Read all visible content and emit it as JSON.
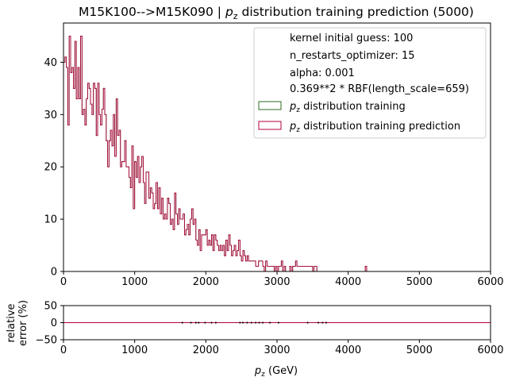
{
  "chart_data": [
    {
      "type": "histogram",
      "title": "M15K100-->M15K090 | p_z distribution training prediction (5000)",
      "title_parts": {
        "prefix": "M15K100-->M15K090 | ",
        "var": "p",
        "sub": "z",
        "suffix": " distribution training prediction (5000)"
      },
      "xlabel": "",
      "ylabel": "",
      "xlim": [
        0,
        6000
      ],
      "ylim": [
        0,
        47.5
      ],
      "x_ticks": [
        "0",
        "1000",
        "2000",
        "3000",
        "4000",
        "5000",
        "6000"
      ],
      "y_ticks": [
        "0",
        "10",
        "20",
        "30",
        "40"
      ],
      "x_tick_values": [
        0,
        1000,
        2000,
        3000,
        4000,
        5000,
        6000
      ],
      "y_tick_values": [
        0,
        10,
        20,
        30,
        40
      ],
      "legend_position": "top-right",
      "legend_text": [
        "kernel initial guess: 100",
        "n_restarts_optimizer: 15",
        "alpha: 0.001",
        "0.369**2 * RBF(length_scale=659)"
      ],
      "series": [
        {
          "name": "p_z distribution training",
          "label_var": "p",
          "label_sub": "z",
          "label_rest": " distribution training",
          "color": "#2e6b1f"
        },
        {
          "name": "p_z distribution training prediction",
          "label_var": "p",
          "label_sub": "z",
          "label_rest": " distribution training prediction",
          "color": "#b2003c"
        }
      ],
      "bin_start": 0,
      "bin_width": 20,
      "counts": [
        40,
        41,
        39,
        28,
        45,
        38,
        39,
        35,
        44,
        33,
        39,
        33,
        45,
        30,
        31,
        28,
        33,
        36,
        35,
        32,
        30,
        36,
        35,
        26,
        36,
        30,
        28,
        31,
        35,
        30,
        25,
        20,
        25,
        27,
        24,
        30,
        22,
        33,
        26,
        27,
        20,
        21,
        21,
        25,
        20,
        20,
        18,
        16,
        24,
        12,
        21,
        18,
        22,
        17,
        20,
        22,
        17,
        13,
        19,
        19,
        14,
        16,
        15,
        12,
        13,
        17,
        12,
        16,
        11,
        14,
        10,
        11,
        10,
        14,
        13,
        9,
        10,
        8,
        15,
        11,
        9,
        12,
        10,
        10,
        11,
        7,
        8,
        9,
        7,
        10,
        12,
        9,
        10,
        6,
        5,
        8,
        4,
        7,
        7,
        7,
        8,
        5,
        6,
        5,
        7,
        4,
        7,
        6,
        5,
        4,
        5,
        4,
        5,
        3,
        6,
        4,
        7,
        5,
        3,
        4,
        5,
        3,
        4,
        6,
        3,
        2,
        4,
        3,
        2,
        3,
        2,
        2,
        2,
        2,
        2,
        1,
        1,
        2,
        2,
        2,
        1,
        0,
        2,
        1,
        1,
        1,
        1,
        1,
        0,
        1,
        0,
        1,
        1,
        2,
        0,
        1,
        0,
        0,
        0,
        1,
        0,
        1,
        1,
        2,
        1,
        1,
        1,
        1,
        1,
        1,
        1,
        1,
        1,
        1,
        1,
        0,
        1,
        1,
        0,
        0,
        0,
        0,
        0,
        0,
        0,
        0,
        0,
        0,
        0,
        0,
        0,
        0,
        0,
        0,
        0,
        0,
        0,
        0,
        0,
        0,
        0,
        0,
        0,
        0,
        0,
        0,
        0,
        0,
        0,
        0,
        0,
        0,
        1,
        0,
        0,
        0,
        0,
        0,
        0,
        0,
        0,
        0
      ]
    },
    {
      "type": "line",
      "title": "",
      "xlabel": "p_z (GeV)",
      "xlabel_parts": {
        "var": "p",
        "sub": "z",
        "rest": " (GeV)"
      },
      "ylabel": "relative\nerror (%)",
      "ylabel_lines": [
        "relative",
        "error (%)"
      ],
      "xlim": [
        0,
        6000
      ],
      "ylim": [
        -50,
        50
      ],
      "x_ticks": [
        "0",
        "1000",
        "2000",
        "3000",
        "4000",
        "5000",
        "6000"
      ],
      "y_ticks": [
        "−50",
        "0",
        "50"
      ],
      "x_tick_values": [
        0,
        1000,
        2000,
        3000,
        4000,
        5000,
        6000
      ],
      "y_tick_values": [
        -50,
        0,
        50
      ],
      "x": [
        1670,
        1790,
        1860,
        1900,
        1990,
        2080,
        2140,
        2480,
        2520,
        2580,
        2640,
        2700,
        2750,
        2800,
        2900,
        3020,
        3430,
        3580,
        3640,
        3690
      ],
      "y": [
        0,
        0,
        0,
        0,
        0,
        0,
        0,
        0,
        0,
        0,
        0,
        0,
        0,
        0,
        0,
        0,
        0,
        0,
        0,
        0
      ],
      "line_color": "#b2003c",
      "zero_line": 0
    }
  ]
}
